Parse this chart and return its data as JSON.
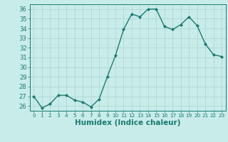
{
  "x": [
    0,
    1,
    2,
    3,
    4,
    5,
    6,
    7,
    8,
    9,
    10,
    11,
    12,
    13,
    14,
    15,
    16,
    17,
    18,
    19,
    20,
    21,
    22,
    23
  ],
  "y": [
    27.0,
    25.8,
    26.2,
    27.1,
    27.1,
    26.6,
    26.4,
    25.9,
    26.7,
    29.0,
    31.2,
    33.9,
    35.5,
    35.2,
    36.0,
    36.0,
    34.2,
    33.9,
    34.4,
    35.2,
    34.3,
    32.4,
    31.3,
    31.1
  ],
  "line_color": "#1a7a6e",
  "marker": "D",
  "marker_size": 2.0,
  "bg_color": "#c8ecea",
  "grid_color": "#b0d8d4",
  "xlabel": "Humidex (Indice chaleur)",
  "ylim": [
    25.5,
    36.5
  ],
  "yticks": [
    26,
    27,
    28,
    29,
    30,
    31,
    32,
    33,
    34,
    35,
    36
  ],
  "xticks": [
    0,
    1,
    2,
    3,
    4,
    5,
    6,
    7,
    8,
    9,
    10,
    11,
    12,
    13,
    14,
    15,
    16,
    17,
    18,
    19,
    20,
    21,
    22,
    23
  ],
  "tick_color": "#1a7a6e",
  "ytick_fontsize": 6.0,
  "xtick_fontsize": 5.2,
  "xlabel_fontsize": 7.5,
  "line_width": 1.0
}
